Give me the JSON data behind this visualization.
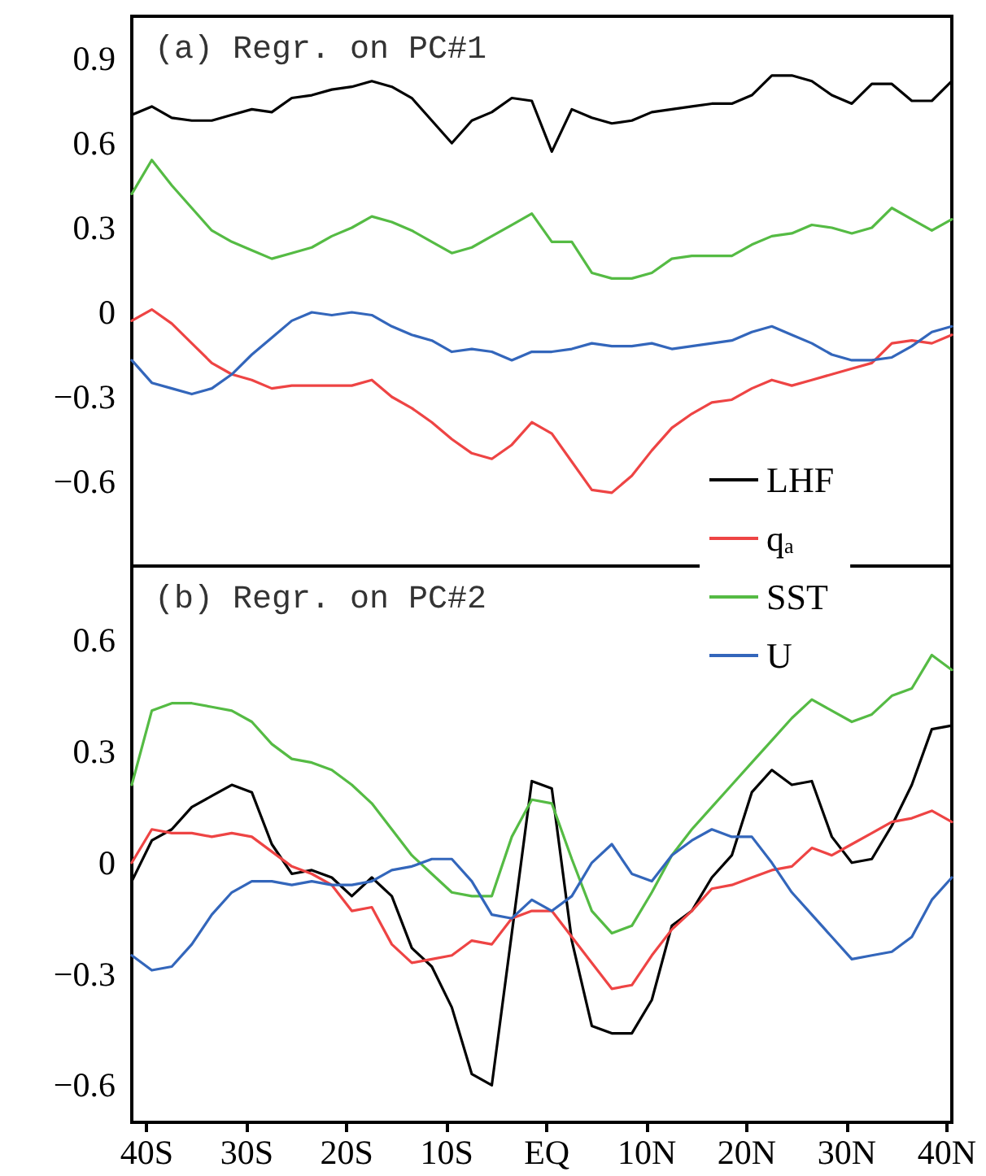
{
  "chart_data": [
    {
      "type": "line",
      "title": "(a) Regr. on PC#1",
      "legend": "bottom right",
      "tick_labels": "y",
      "x": [
        -41.5,
        -39.5,
        -37.5,
        -35.5,
        -33.5,
        -31.5,
        -29.5,
        -27.5,
        -25.5,
        -23.5,
        -21.5,
        -19.5,
        -17.5,
        -15.5,
        -13.5,
        -11.5,
        -9.5,
        -7.5,
        -5.5,
        -3.5,
        -1.5,
        0.5,
        2.5,
        4.5,
        6.5,
        8.5,
        10.5,
        12.5,
        14.5,
        16.5,
        18.5,
        20.5,
        22.5,
        24.5,
        26.5,
        28.5,
        30.5,
        32.5,
        34.5,
        36.5,
        38.5,
        40.5
      ],
      "xlim": [
        -41.5,
        40.5
      ],
      "ylim": [
        -0.9,
        1.05
      ],
      "yticks": [
        -0.6,
        -0.3,
        0,
        0.3,
        0.6,
        0.9
      ],
      "series": [
        {
          "name": "LHF",
          "color": "#000000",
          "values": [
            0.7,
            0.73,
            0.69,
            0.68,
            0.68,
            0.7,
            0.72,
            0.71,
            0.76,
            0.77,
            0.79,
            0.8,
            0.82,
            0.8,
            0.76,
            0.68,
            0.6,
            0.68,
            0.71,
            0.76,
            0.75,
            0.57,
            0.72,
            0.69,
            0.67,
            0.68,
            0.71,
            0.72,
            0.73,
            0.74,
            0.74,
            0.77,
            0.84,
            0.84,
            0.82,
            0.77,
            0.74,
            0.81,
            0.81,
            0.75,
            0.75,
            0.82
          ]
        },
        {
          "name": "q$_{a}$",
          "color": "#ee4444",
          "values": [
            -0.03,
            0.01,
            -0.04,
            -0.11,
            -0.18,
            -0.22,
            -0.24,
            -0.27,
            -0.26,
            -0.26,
            -0.26,
            -0.26,
            -0.24,
            -0.3,
            -0.34,
            -0.39,
            -0.45,
            -0.5,
            -0.52,
            -0.47,
            -0.39,
            -0.43,
            -0.53,
            -0.63,
            -0.64,
            -0.58,
            -0.49,
            -0.41,
            -0.36,
            -0.32,
            -0.31,
            -0.27,
            -0.24,
            -0.26,
            -0.24,
            -0.22,
            -0.2,
            -0.18,
            -0.11,
            -0.1,
            -0.11,
            -0.08
          ]
        },
        {
          "name": "SST",
          "color": "#55bb44",
          "values": [
            0.42,
            0.54,
            0.45,
            0.37,
            0.29,
            0.25,
            0.22,
            0.19,
            0.21,
            0.23,
            0.27,
            0.3,
            0.34,
            0.32,
            0.29,
            0.25,
            0.21,
            0.23,
            0.27,
            0.31,
            0.35,
            0.25,
            0.25,
            0.14,
            0.12,
            0.12,
            0.14,
            0.19,
            0.2,
            0.2,
            0.2,
            0.24,
            0.27,
            0.28,
            0.31,
            0.3,
            0.28,
            0.3,
            0.37,
            0.33,
            0.29,
            0.33
          ]
        },
        {
          "name": "U",
          "color": "#3366bb",
          "values": [
            -0.17,
            -0.25,
            -0.27,
            -0.29,
            -0.27,
            -0.22,
            -0.15,
            -0.09,
            -0.03,
            0.0,
            -0.01,
            0.0,
            -0.01,
            -0.05,
            -0.08,
            -0.1,
            -0.14,
            -0.13,
            -0.14,
            -0.17,
            -0.14,
            -0.14,
            -0.13,
            -0.11,
            -0.12,
            -0.12,
            -0.11,
            -0.13,
            -0.12,
            -0.11,
            -0.1,
            -0.07,
            -0.05,
            -0.08,
            -0.11,
            -0.15,
            -0.17,
            -0.17,
            -0.16,
            -0.12,
            -0.07,
            -0.05
          ]
        }
      ]
    },
    {
      "type": "line",
      "title": "(b) Regr. on PC#2",
      "x": [
        -41.5,
        -39.5,
        -37.5,
        -35.5,
        -33.5,
        -31.5,
        -29.5,
        -27.5,
        -25.5,
        -23.5,
        -21.5,
        -19.5,
        -17.5,
        -15.5,
        -13.5,
        -11.5,
        -9.5,
        -7.5,
        -5.5,
        -3.5,
        -1.5,
        0.5,
        2.5,
        4.5,
        6.5,
        8.5,
        10.5,
        12.5,
        14.5,
        16.5,
        18.5,
        20.5,
        22.5,
        24.5,
        26.5,
        28.5,
        30.5,
        32.5,
        34.5,
        36.5,
        38.5,
        40.5
      ],
      "xlim": [
        -41.5,
        40.5
      ],
      "xticks": [
        {
          "value": -40,
          "label": "40S"
        },
        {
          "value": -30,
          "label": "30S"
        },
        {
          "value": -20,
          "label": "20S"
        },
        {
          "value": -10,
          "label": "10S"
        },
        {
          "value": 0,
          "label": "EQ"
        },
        {
          "value": 10,
          "label": "10N"
        },
        {
          "value": 20,
          "label": "20N"
        },
        {
          "value": 30,
          "label": "30N"
        },
        {
          "value": 40,
          "label": "40N"
        }
      ],
      "ylim": [
        -0.7,
        0.8
      ],
      "yticks": [
        -0.6,
        -0.3,
        0,
        0.3,
        0.6
      ],
      "series": [
        {
          "color": "#000000",
          "values": [
            -0.05,
            0.06,
            0.09,
            0.15,
            0.18,
            0.21,
            0.19,
            0.05,
            -0.03,
            -0.02,
            -0.04,
            -0.09,
            -0.04,
            -0.09,
            -0.23,
            -0.28,
            -0.39,
            -0.57,
            -0.6,
            -0.19,
            0.22,
            0.2,
            -0.21,
            -0.44,
            -0.46,
            -0.46,
            -0.37,
            -0.17,
            -0.13,
            -0.04,
            0.02,
            0.19,
            0.25,
            0.21,
            0.22,
            0.07,
            0.0,
            0.01,
            0.1,
            0.21,
            0.36,
            0.37
          ]
        },
        {
          "color": "#ee4444",
          "values": [
            0.0,
            0.09,
            0.08,
            0.08,
            0.07,
            0.08,
            0.07,
            0.03,
            -0.01,
            -0.03,
            -0.06,
            -0.13,
            -0.12,
            -0.22,
            -0.27,
            -0.26,
            -0.25,
            -0.21,
            -0.22,
            -0.15,
            -0.13,
            -0.13,
            -0.2,
            -0.27,
            -0.34,
            -0.33,
            -0.25,
            -0.18,
            -0.13,
            -0.07,
            -0.06,
            -0.04,
            -0.02,
            -0.01,
            0.04,
            0.02,
            0.05,
            0.08,
            0.11,
            0.12,
            0.14,
            0.11
          ]
        },
        {
          "color": "#55bb44",
          "values": [
            0.21,
            0.41,
            0.43,
            0.43,
            0.42,
            0.41,
            0.38,
            0.32,
            0.28,
            0.27,
            0.25,
            0.21,
            0.16,
            0.09,
            0.02,
            -0.03,
            -0.08,
            -0.09,
            -0.09,
            0.07,
            0.17,
            0.16,
            0.01,
            -0.13,
            -0.19,
            -0.17,
            -0.08,
            0.02,
            0.09,
            0.15,
            0.21,
            0.27,
            0.33,
            0.39,
            0.44,
            0.41,
            0.38,
            0.4,
            0.45,
            0.47,
            0.56,
            0.52
          ]
        },
        {
          "color": "#3366bb",
          "values": [
            -0.25,
            -0.29,
            -0.28,
            -0.22,
            -0.14,
            -0.08,
            -0.05,
            -0.05,
            -0.06,
            -0.05,
            -0.06,
            -0.06,
            -0.05,
            -0.02,
            -0.01,
            0.01,
            0.01,
            -0.05,
            -0.14,
            -0.15,
            -0.1,
            -0.13,
            -0.09,
            0.0,
            0.05,
            -0.03,
            -0.05,
            0.02,
            0.06,
            0.09,
            0.07,
            0.07,
            0.0,
            -0.08,
            -0.14,
            -0.2,
            -0.26,
            -0.25,
            -0.24,
            -0.2,
            -0.1,
            -0.04
          ]
        }
      ]
    }
  ]
}
